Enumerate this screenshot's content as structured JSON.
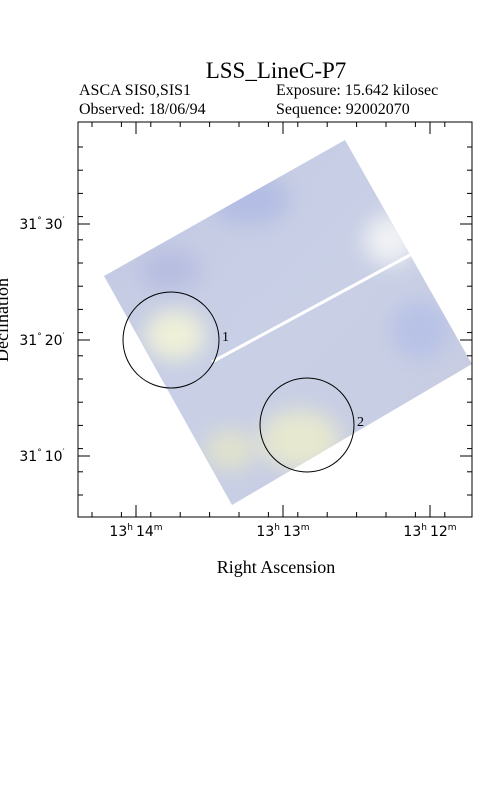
{
  "header": {
    "title": "LSS_LineC-P7",
    "instrument": "ASCA SIS0,SIS1",
    "exposure": "Exposure: 15.642 kilosec",
    "observed": "Observed: 18/06/94",
    "sequence": "Sequence: 92002070"
  },
  "axes": {
    "x_label": "Right Ascension",
    "y_label": "Declination",
    "y_ticks": [
      {
        "deg": "31",
        "deg_unit": "°",
        "min": "30",
        "min_unit": "′"
      },
      {
        "deg": "31",
        "deg_unit": "°",
        "min": "20",
        "min_unit": "′"
      },
      {
        "deg": "31",
        "deg_unit": "°",
        "min": "10",
        "min_unit": "′"
      }
    ],
    "x_ticks": [
      {
        "hours": "13",
        "hour_unit": "h",
        "minutes": "14",
        "minute_unit": "m"
      },
      {
        "hours": "13",
        "hour_unit": "h",
        "minutes": "13",
        "minute_unit": "m"
      },
      {
        "hours": "13",
        "hour_unit": "h",
        "minutes": "12",
        "minute_unit": "m"
      }
    ]
  },
  "sources": [
    {
      "label": "1"
    },
    {
      "label": "2"
    }
  ]
}
